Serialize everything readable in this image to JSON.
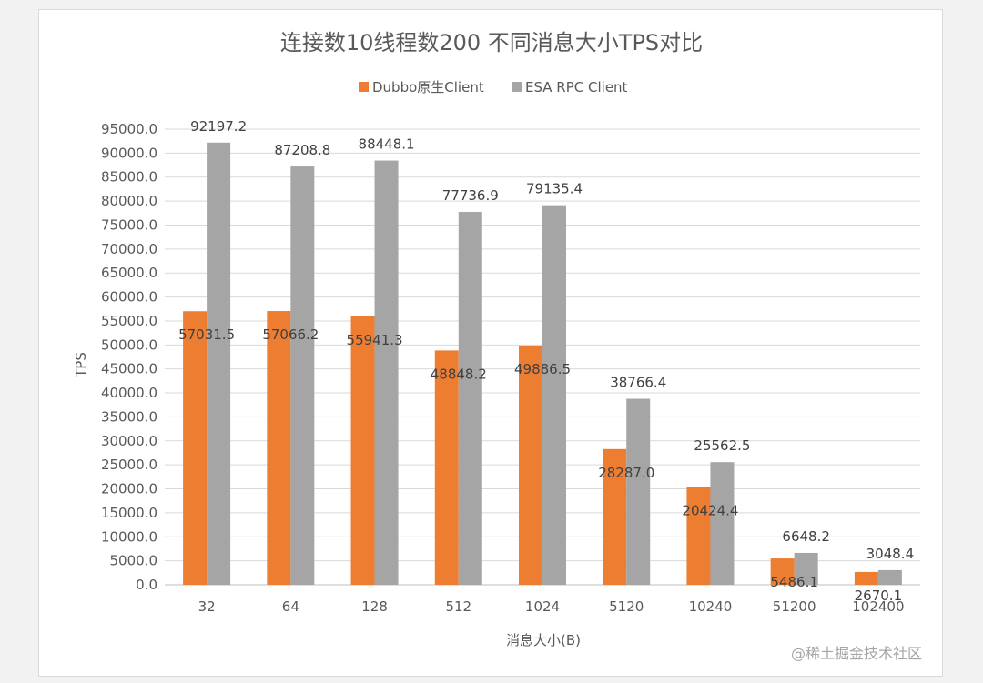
{
  "chart_data": {
    "type": "bar",
    "title": "连接数10线程数200 不同消息大小TPS对比",
    "xlabel": "消息大小(B)",
    "ylabel": "TPS",
    "categories": [
      "32",
      "64",
      "128",
      "512",
      "1024",
      "5120",
      "10240",
      "51200",
      "102400"
    ],
    "series": [
      {
        "name": "Dubbo原生Client",
        "color": "#ed7d31",
        "values": [
          57031.5,
          57066.2,
          55941.3,
          48848.2,
          49886.5,
          28287.0,
          20424.4,
          5486.1,
          2670.1
        ]
      },
      {
        "name": "ESA RPC Client",
        "color": "#a5a5a5",
        "values": [
          92197.2,
          87208.8,
          88448.1,
          77736.9,
          79135.4,
          38766.4,
          25562.5,
          6648.2,
          3048.4
        ]
      }
    ],
    "ylim": [
      0,
      95000
    ],
    "ystep": 5000,
    "y_tick_decimals": 1,
    "grid": true,
    "legend_position": "top"
  },
  "watermark": "@稀土掘金技术社区"
}
